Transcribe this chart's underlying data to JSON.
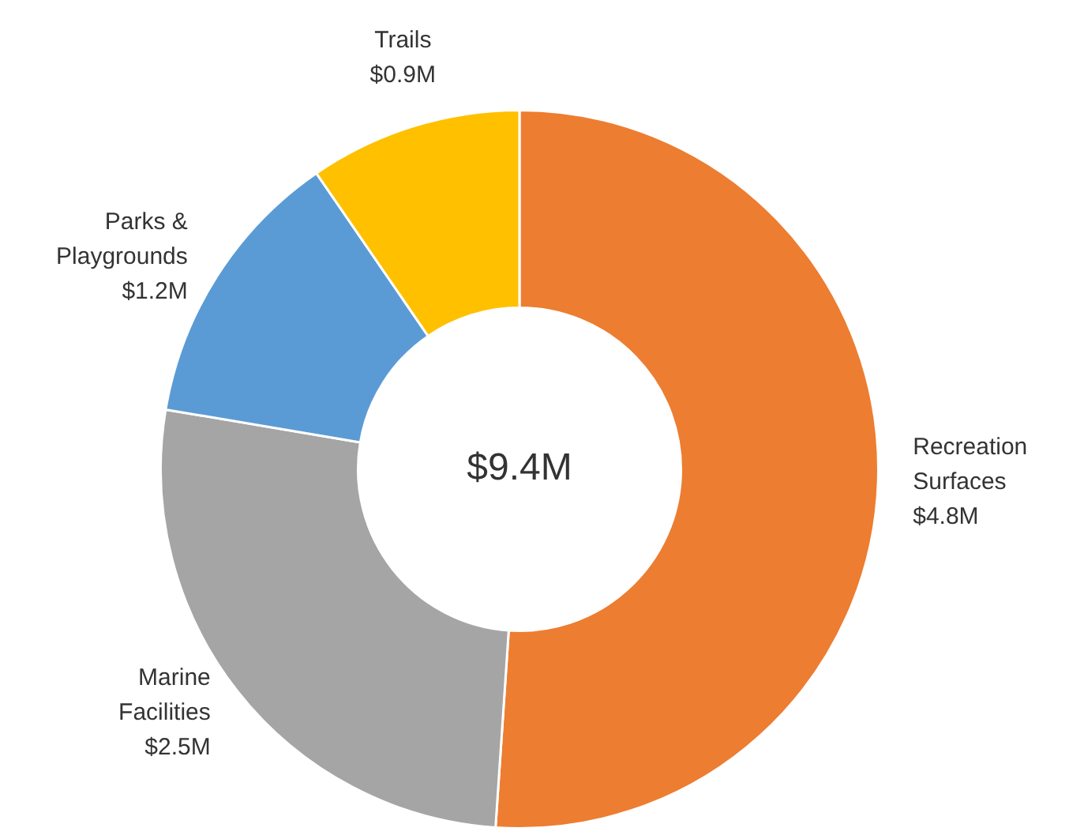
{
  "chart_data": {
    "type": "donut",
    "categories": [
      "Recreation Surfaces",
      "Marine Facilities",
      "Parks & Playgrounds",
      "Trails"
    ],
    "values": [
      4.8,
      2.5,
      1.2,
      0.9
    ],
    "colors": [
      "#ed7d31",
      "#a5a5a5",
      "#5b9bd5",
      "#ffc000"
    ],
    "value_labels": [
      "$4.8M",
      "$2.5M",
      "$1.2M",
      "$0.9M"
    ],
    "annotations": [
      "$9.4M"
    ],
    "legend": false
  }
}
